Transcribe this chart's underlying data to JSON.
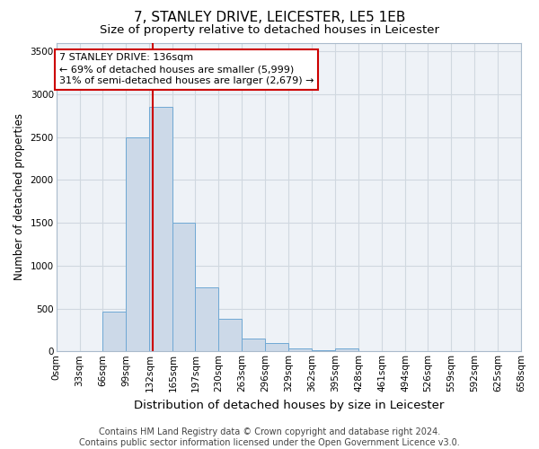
{
  "title": "7, STANLEY DRIVE, LEICESTER, LE5 1EB",
  "subtitle": "Size of property relative to detached houses in Leicester",
  "xlabel": "Distribution of detached houses by size in Leicester",
  "ylabel": "Number of detached properties",
  "bin_edges": [
    0,
    33,
    66,
    99,
    132,
    165,
    197,
    230,
    263,
    296,
    329,
    362,
    395,
    428,
    461,
    494,
    526,
    559,
    592,
    625,
    658
  ],
  "bin_labels": [
    "0sqm",
    "33sqm",
    "66sqm",
    "99sqm",
    "132sqm",
    "165sqm",
    "197sqm",
    "230sqm",
    "263sqm",
    "296sqm",
    "329sqm",
    "362sqm",
    "395sqm",
    "428sqm",
    "461sqm",
    "494sqm",
    "526sqm",
    "559sqm",
    "592sqm",
    "625sqm",
    "658sqm"
  ],
  "bar_heights": [
    0,
    5,
    460,
    2500,
    2850,
    1500,
    750,
    380,
    150,
    100,
    30,
    10,
    35,
    0,
    0,
    0,
    0,
    0,
    0,
    0
  ],
  "bar_facecolor": "#ccd9e8",
  "bar_edgecolor": "#6fa8d4",
  "property_size": 136,
  "vline_color": "#cc0000",
  "annotation_text": "7 STANLEY DRIVE: 136sqm\n← 69% of detached houses are smaller (5,999)\n31% of semi-detached houses are larger (2,679) →",
  "annotation_box_color": "#cc0000",
  "ylim": [
    0,
    3600
  ],
  "yticks": [
    0,
    500,
    1000,
    1500,
    2000,
    2500,
    3000,
    3500
  ],
  "grid_color": "#d0d8e0",
  "footer_text": "Contains HM Land Registry data © Crown copyright and database right 2024.\nContains public sector information licensed under the Open Government Licence v3.0.",
  "title_fontsize": 11,
  "subtitle_fontsize": 9.5,
  "xlabel_fontsize": 9.5,
  "ylabel_fontsize": 8.5,
  "tick_fontsize": 7.5,
  "annotation_fontsize": 8,
  "footer_fontsize": 7,
  "bg_color": "#ffffff",
  "plot_bg_color": "#eef2f7"
}
